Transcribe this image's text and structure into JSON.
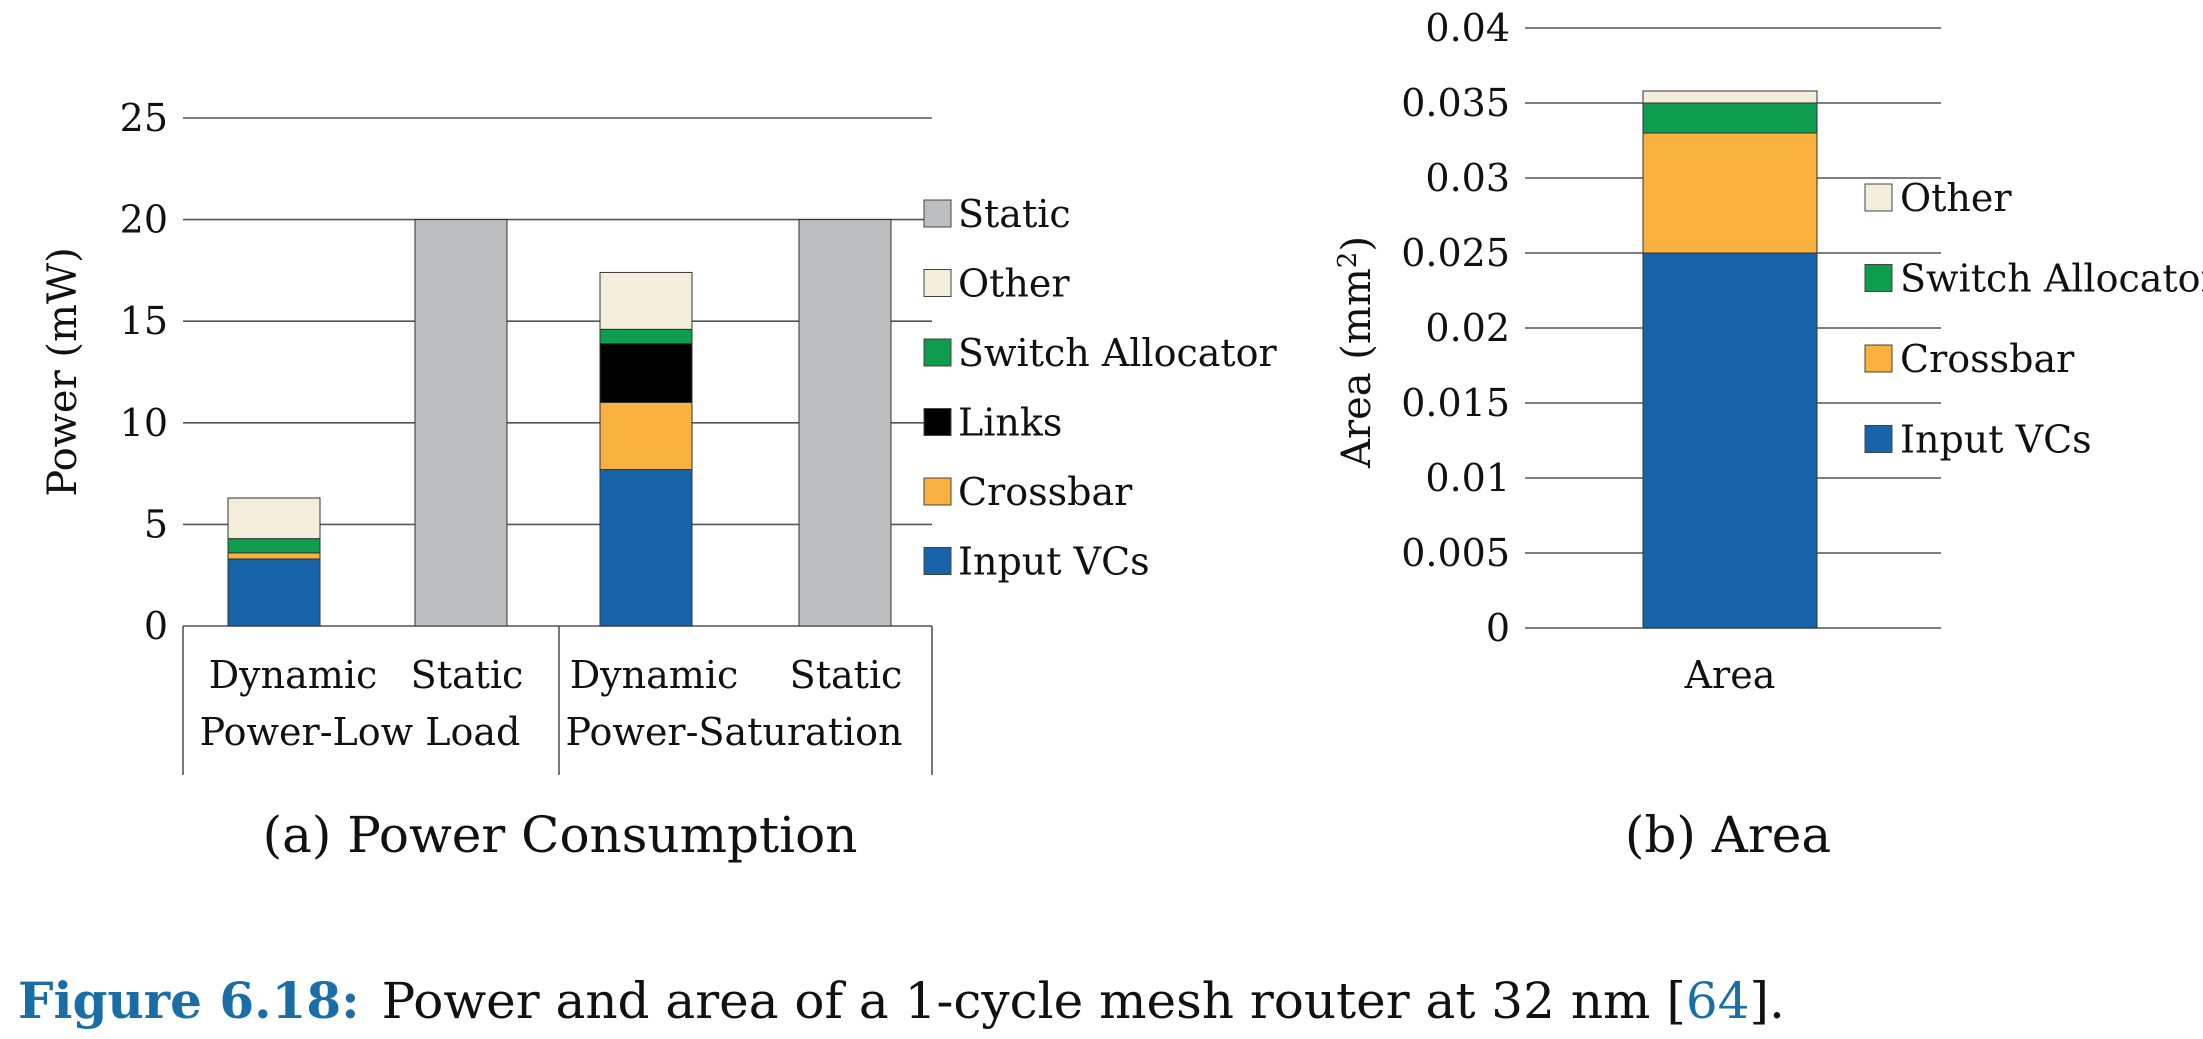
{
  "chart_data": [
    {
      "type": "bar",
      "stacked": true,
      "subcaption": "(a) Power Consumption",
      "ylabel": "Power (mW)",
      "ylim": [
        0,
        25
      ],
      "yticks": [
        "0",
        "5",
        "10",
        "15",
        "20",
        "25"
      ],
      "grid": true,
      "legend_position": "right",
      "categories": [
        "Dynamic",
        "Static",
        "Dynamic",
        "Static"
      ],
      "groups": [
        "Power-Low Load",
        "Power-Saturation"
      ],
      "series": [
        {
          "name": "Input VCs",
          "color": "#1764ab",
          "values": [
            3.3,
            0,
            7.7,
            0
          ]
        },
        {
          "name": "Crossbar",
          "color": "#f9b13f",
          "values": [
            0.3,
            0,
            3.3,
            0
          ]
        },
        {
          "name": "Links",
          "color": "#000000",
          "values": [
            0,
            0,
            2.9,
            0
          ]
        },
        {
          "name": "Switch Allocator",
          "color": "#0e9d4d",
          "values": [
            0.7,
            0,
            0.7,
            0
          ]
        },
        {
          "name": "Other",
          "color": "#f2eedb",
          "values": [
            2.0,
            0,
            2.8,
            0
          ]
        },
        {
          "name": "Static",
          "color": "#bdbec0",
          "values": [
            0,
            20,
            0,
            20
          ]
        }
      ]
    },
    {
      "type": "bar",
      "stacked": true,
      "subcaption": "(b) Area",
      "ylabel": "Area (mm",
      "ylabel_sup": "2",
      "ylabel_end": ")",
      "ylim": [
        0,
        0.04
      ],
      "yticks": [
        "0",
        "0.005",
        "0.01",
        "0.015",
        "0.02",
        "0.025",
        "0.03",
        "0.035",
        "0.04"
      ],
      "grid": true,
      "legend_position": "right",
      "categories": [
        "Area"
      ],
      "series": [
        {
          "name": "Input VCs",
          "color": "#1764ab",
          "values": [
            0.025
          ]
        },
        {
          "name": "Crossbar",
          "color": "#f9b13f",
          "values": [
            0.008
          ]
        },
        {
          "name": "Switch Allocator",
          "color": "#0e9d4d",
          "values": [
            0.002
          ]
        },
        {
          "name": "Other",
          "color": "#f2eedb",
          "values": [
            0.0008
          ]
        }
      ]
    }
  ],
  "caption": {
    "label": "Figure 6.18:",
    "text": "Power and area of a 1-cycle mesh router at 32 nm [",
    "ref": "64",
    "end": "]."
  }
}
